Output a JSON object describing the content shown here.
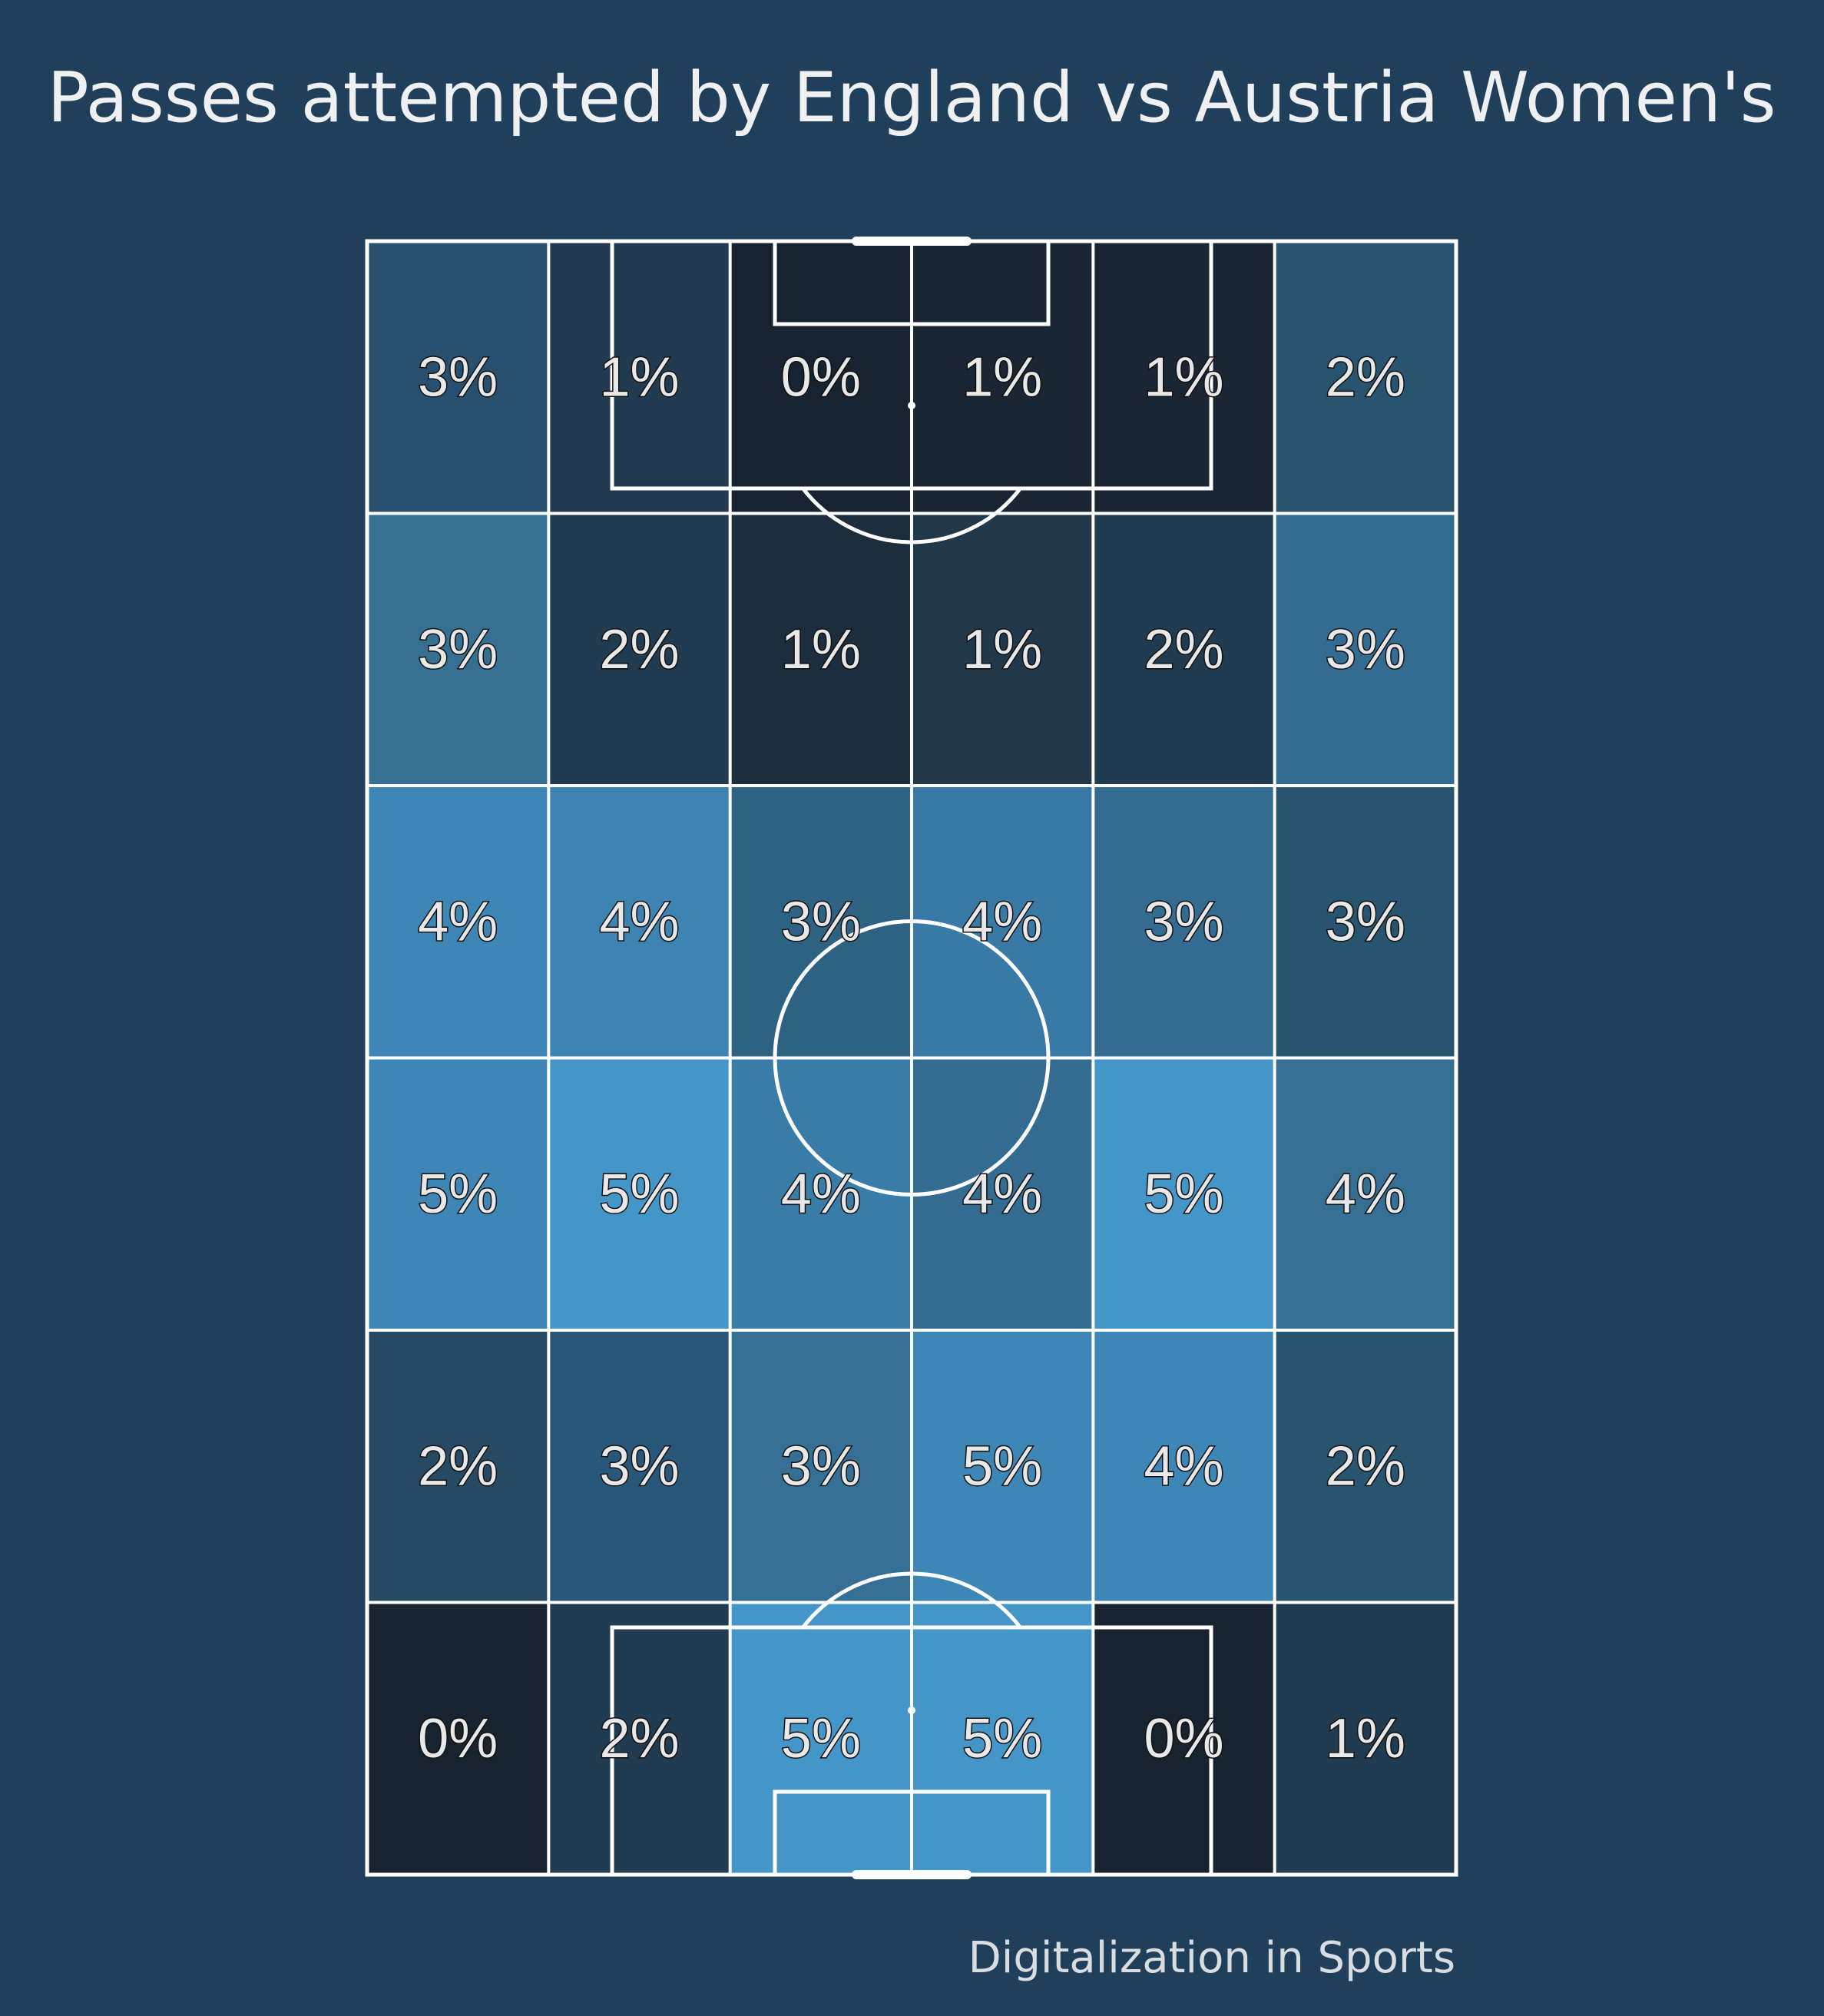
{
  "title": "Passes attempted by England vs Austria Women's",
  "credit": "Digitalization in Sports",
  "colors": {
    "background": "#1f3f5a",
    "lines": "#ffffff",
    "text": "#e8e8e8",
    "scale": [
      "#162230",
      "#1f3a50",
      "#285470",
      "#356f94",
      "#3e86b5",
      "#4596c8"
    ]
  },
  "chart_data": {
    "type": "heatmap",
    "title": "Passes attempted by England vs Austria Women's",
    "value_unit": "%",
    "rows": 6,
    "cols": 6,
    "values": [
      [
        3,
        1,
        0,
        1,
        1,
        2
      ],
      [
        3,
        2,
        1,
        1,
        2,
        3
      ],
      [
        4,
        4,
        3,
        4,
        3,
        3
      ],
      [
        5,
        5,
        4,
        4,
        5,
        4
      ],
      [
        2,
        3,
        3,
        5,
        4,
        2
      ],
      [
        0,
        2,
        5,
        5,
        0,
        1
      ]
    ],
    "labels": [
      [
        "3%",
        "1%",
        "0%",
        "1%",
        "1%",
        "2%"
      ],
      [
        "3%",
        "2%",
        "1%",
        "1%",
        "2%",
        "3%"
      ],
      [
        "4%",
        "4%",
        "3%",
        "4%",
        "3%",
        "3%"
      ],
      [
        "5%",
        "5%",
        "4%",
        "4%",
        "5%",
        "4%"
      ],
      [
        "2%",
        "3%",
        "3%",
        "5%",
        "4%",
        "2%"
      ],
      [
        "0%",
        "2%",
        "5%",
        "5%",
        "0%",
        "1%"
      ]
    ],
    "cell_colors": [
      [
        "#28506e",
        "#223b51",
        "#172330",
        "#1a2634",
        "#1a2634",
        "#285470"
      ],
      [
        "#356f92",
        "#213b50",
        "#1c2e3d",
        "#203849",
        "#213b50",
        "#336b91"
      ],
      [
        "#3e86b5",
        "#3d84b2",
        "#2e6283",
        "#3979a5",
        "#336b91",
        "#285470"
      ],
      [
        "#3e86b5",
        "#4596c8",
        "#3a7ca8",
        "#336b91",
        "#4596c8",
        "#356f94"
      ],
      [
        "#264a64",
        "#29577a",
        "#356f94",
        "#3e86b5",
        "#3e86b5",
        "#285470"
      ],
      [
        "#17232e",
        "#213b50",
        "#4596c8",
        "#4596c8",
        "#17232e",
        "#213b50"
      ]
    ],
    "grid": true,
    "pitch": true,
    "orientation": "vertical"
  }
}
